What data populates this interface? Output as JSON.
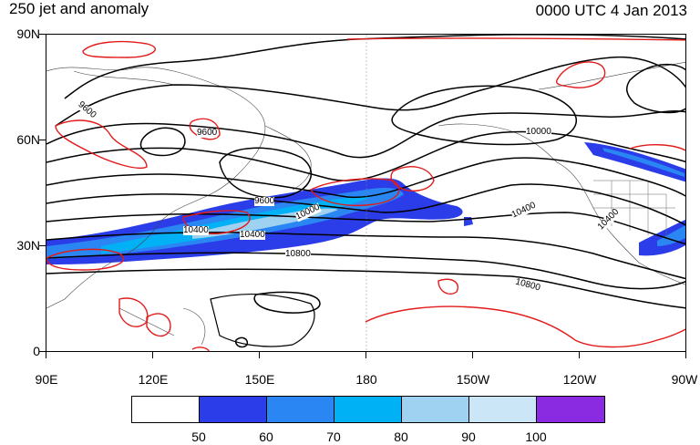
{
  "title_left": "250 jet and anomaly",
  "title_right": "0000 UTC 4 Jan 2013",
  "lat_labels": [
    "90N",
    "60N",
    "30N",
    "0"
  ],
  "lon_labels": [
    "90E",
    "120E",
    "150E",
    "180",
    "150W",
    "120W",
    "90W"
  ],
  "contour_labels": [
    "9600",
    "9600",
    "9600",
    "10000",
    "10000",
    "10400",
    "10400",
    "10400",
    "10800",
    "10800",
    "10400"
  ],
  "colorbar": {
    "colors": [
      "#ffffff",
      "#2b3de8",
      "#2a86f2",
      "#00b2f5",
      "#9fd2f0",
      "#cbe7f7",
      "#8a2be2"
    ],
    "labels": [
      "50",
      "60",
      "70",
      "80",
      "90",
      "100"
    ]
  }
}
